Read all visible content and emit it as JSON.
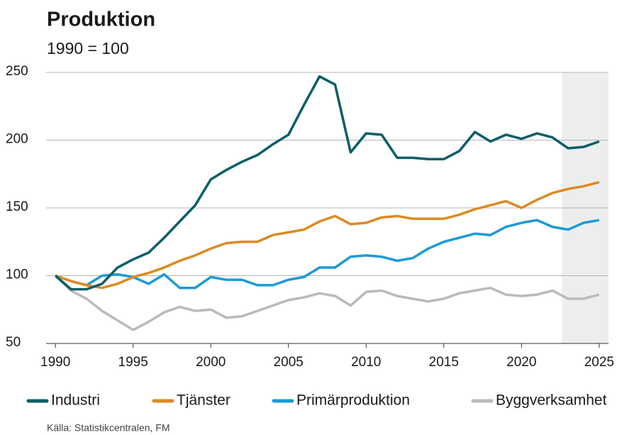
{
  "chart_data": {
    "type": "line",
    "title": "Produktion",
    "subtitle": "1990 = 100",
    "source": "Källa: Statistikcentralen, FM",
    "x": [
      1990,
      1991,
      1992,
      1993,
      1994,
      1995,
      1996,
      1997,
      1998,
      1999,
      2000,
      2001,
      2002,
      2003,
      2004,
      2005,
      2006,
      2007,
      2008,
      2009,
      2010,
      2011,
      2012,
      2013,
      2014,
      2015,
      2016,
      2017,
      2018,
      2019,
      2020,
      2021,
      2022,
      2023,
      2024,
      2025
    ],
    "series": [
      {
        "name": "Industri",
        "color": "#0b5e68",
        "values": [
          100,
          90,
          90,
          94,
          106,
          112,
          117,
          128,
          140,
          152,
          171,
          178,
          184,
          189,
          197,
          204,
          226,
          247,
          241,
          191,
          205,
          204,
          187,
          187,
          186,
          186,
          192,
          206,
          199,
          204,
          201,
          205,
          202,
          194,
          195,
          199
        ]
      },
      {
        "name": "Tjänster",
        "color": "#dc8a22",
        "values": [
          100,
          96,
          93,
          91,
          94,
          99,
          102,
          106,
          111,
          115,
          120,
          124,
          125,
          125,
          130,
          132,
          134,
          140,
          144,
          138,
          139,
          143,
          144,
          142,
          142,
          142,
          145,
          149,
          152,
          155,
          150,
          156,
          161,
          164,
          166,
          169
        ]
      },
      {
        "name": "Primärproduktion",
        "color": "#1c9ad6",
        "values": [
          100,
          96,
          93,
          100,
          101,
          99,
          94,
          101,
          91,
          91,
          99,
          97,
          97,
          93,
          93,
          97,
          99,
          106,
          106,
          114,
          115,
          114,
          111,
          113,
          120,
          125,
          128,
          131,
          130,
          136,
          139,
          141,
          136,
          134,
          139,
          141
        ]
      },
      {
        "name": "Byggverksamhet",
        "color": "#b9babc",
        "values": [
          100,
          89,
          83,
          74,
          67,
          60,
          66,
          73,
          77,
          74,
          75,
          69,
          70,
          74,
          78,
          82,
          84,
          87,
          85,
          78,
          88,
          89,
          85,
          83,
          81,
          83,
          87,
          89,
          91,
          86,
          85,
          86,
          89,
          83,
          83,
          86
        ]
      }
    ],
    "xlim": [
      1989.4,
      2025.6
    ],
    "xticks": [
      1990,
      1995,
      2000,
      2005,
      2010,
      2015,
      2020,
      2025
    ],
    "ylim": [
      50,
      250
    ],
    "yticks": [
      50,
      100,
      150,
      200,
      250
    ],
    "grid": true,
    "shaded_xrange": [
      2022.6,
      2025.6
    ],
    "legend": "bottom"
  }
}
